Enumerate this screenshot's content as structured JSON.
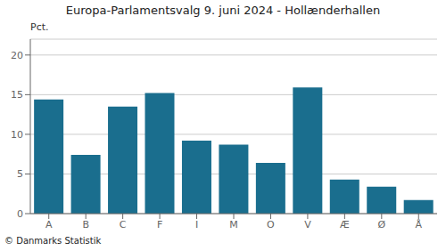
{
  "chart_data": {
    "type": "bar",
    "title": "Europa-Parlamentsvalg 9. juni 2024 - Hollænderhallen",
    "ylabel": "Pct.",
    "annotations": [
      "© Danmarks Statistik"
    ],
    "categories": [
      "A",
      "B",
      "C",
      "F",
      "I",
      "M",
      "O",
      "V",
      "Æ",
      "Ø",
      "Å"
    ],
    "values": [
      14.4,
      7.4,
      13.5,
      15.2,
      9.2,
      8.7,
      6.4,
      15.9,
      4.3,
      3.4,
      1.7
    ],
    "color": "#1a6e8e",
    "ylim": [
      0,
      22
    ],
    "yticks": [
      0,
      5,
      10,
      15,
      20
    ],
    "grid": true
  }
}
